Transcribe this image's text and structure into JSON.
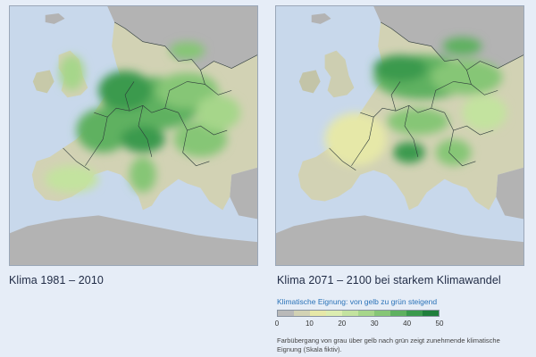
{
  "maps": [
    {
      "caption": "Klima 1981 – 2010",
      "scenario": "baseline"
    },
    {
      "caption": "Klima 2071 – 2100 bei starkem Klimawandel",
      "scenario": "future"
    }
  ],
  "legend": {
    "title": "Klimatische Eignung: von gelb zu grün steigend",
    "ticks": [
      "0",
      "10",
      "20",
      "30",
      "40",
      "50"
    ],
    "tick_values": [
      0,
      10,
      20,
      30,
      40,
      50
    ],
    "note": "Farbübergang von grau über gelb nach grün zeigt zunehmende klimatische Eignung (Skala fiktiv).",
    "colors": [
      "#b9b9b9",
      "#d2d2b4",
      "#e6e8a8",
      "#dcedb0",
      "#c3e39f",
      "#a6d68a",
      "#86c676",
      "#5eb160",
      "#3a9a4d",
      "#1f7f3c"
    ]
  },
  "palette": {
    "sea": "#c8d8eb",
    "non_data_land": "#b3b3b3",
    "border": "#2d3a3a"
  }
}
